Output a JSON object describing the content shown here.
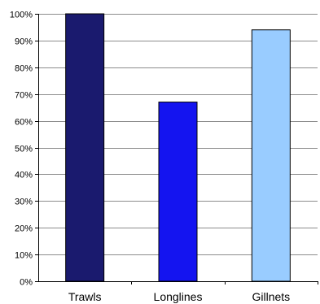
{
  "chart_data": {
    "type": "bar",
    "title": "",
    "xlabel": "",
    "ylabel": "",
    "categories": [
      "Trawls",
      "Longlines",
      "Gillnets"
    ],
    "values": [
      100,
      67,
      94
    ],
    "unit": "%",
    "ylim": [
      0,
      100
    ],
    "yticks": [
      0,
      10,
      20,
      30,
      40,
      50,
      60,
      70,
      80,
      90,
      100
    ],
    "ytick_labels": [
      "0%",
      "10%",
      "20%",
      "30%",
      "40%",
      "50%",
      "60%",
      "70%",
      "80%",
      "90%",
      "100%"
    ],
    "bar_colors": [
      "#1a1a6e",
      "#1414f0",
      "#99ccff"
    ],
    "grid": true,
    "legend": "none"
  }
}
